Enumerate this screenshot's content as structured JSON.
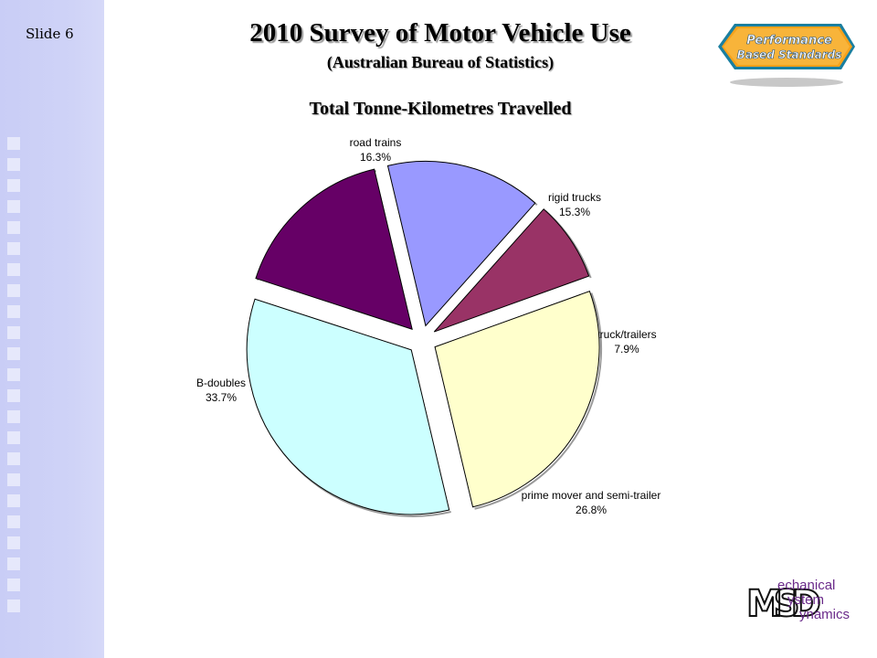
{
  "slide": {
    "number_label": "Slide 6"
  },
  "header": {
    "title": "2010 Survey of Motor Vehicle Use",
    "subtitle": "(Australian Bureau of Statistics)"
  },
  "logos": {
    "pbs": {
      "line1": "Performance",
      "line2": "Based Standards"
    },
    "msd": {
      "letters": "MSD",
      "word1": "echanical",
      "word2": "ystem",
      "word3": "ynamics"
    }
  },
  "chart_data": {
    "type": "pie",
    "title": "Total Tonne-Kilometres Travelled",
    "slices": [
      {
        "label": "road trains",
        "value": 16.3,
        "pct_label": "16.3%",
        "color": "#660066"
      },
      {
        "label": "rigid trucks",
        "value": 15.3,
        "pct_label": "15.3%",
        "color": "#9999ff"
      },
      {
        "label": "truck/trailers",
        "value": 7.9,
        "pct_label": "7.9%",
        "color": "#993366"
      },
      {
        "label": "prime mover and semi-trailer",
        "value": 26.8,
        "pct_label": "26.8%",
        "color": "#ffffcc"
      },
      {
        "label": "B-doubles",
        "value": 33.7,
        "pct_label": "33.7%",
        "color": "#ccffff"
      }
    ],
    "legend": "none",
    "exploded": true
  }
}
